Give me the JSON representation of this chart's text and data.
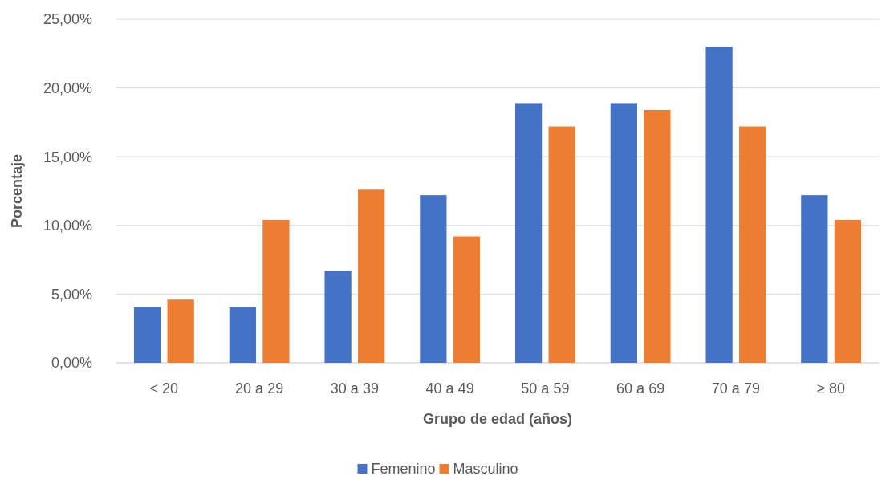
{
  "chart_data": {
    "type": "bar",
    "xlabel": "Grupo de edad (años)",
    "ylabel": "Porcentaje",
    "categories": [
      "< 20",
      "20 a 29",
      "30 a 39",
      "40 a 49",
      "50 a 59",
      "60 a 69",
      "70 a 79",
      "≥ 80"
    ],
    "series": [
      {
        "name": "Femenino",
        "color": "#4472c4",
        "values": [
          4.05,
          4.05,
          6.7,
          12.2,
          18.9,
          18.9,
          23.0,
          12.2
        ]
      },
      {
        "name": "Masculino",
        "color": "#ed7d31",
        "values": [
          4.6,
          10.4,
          12.6,
          9.2,
          17.2,
          18.4,
          17.2,
          10.4
        ]
      }
    ],
    "ylim": [
      0,
      25
    ],
    "yticks": [
      {
        "value": 0,
        "label": "0,00%"
      },
      {
        "value": 5,
        "label": "5,00%"
      },
      {
        "value": 10,
        "label": "10,00%"
      },
      {
        "value": 15,
        "label": "15,00%"
      },
      {
        "value": 20,
        "label": "20,00%"
      },
      {
        "value": 25,
        "label": "25,00%"
      }
    ],
    "grid": "y",
    "legend": "bottom"
  }
}
